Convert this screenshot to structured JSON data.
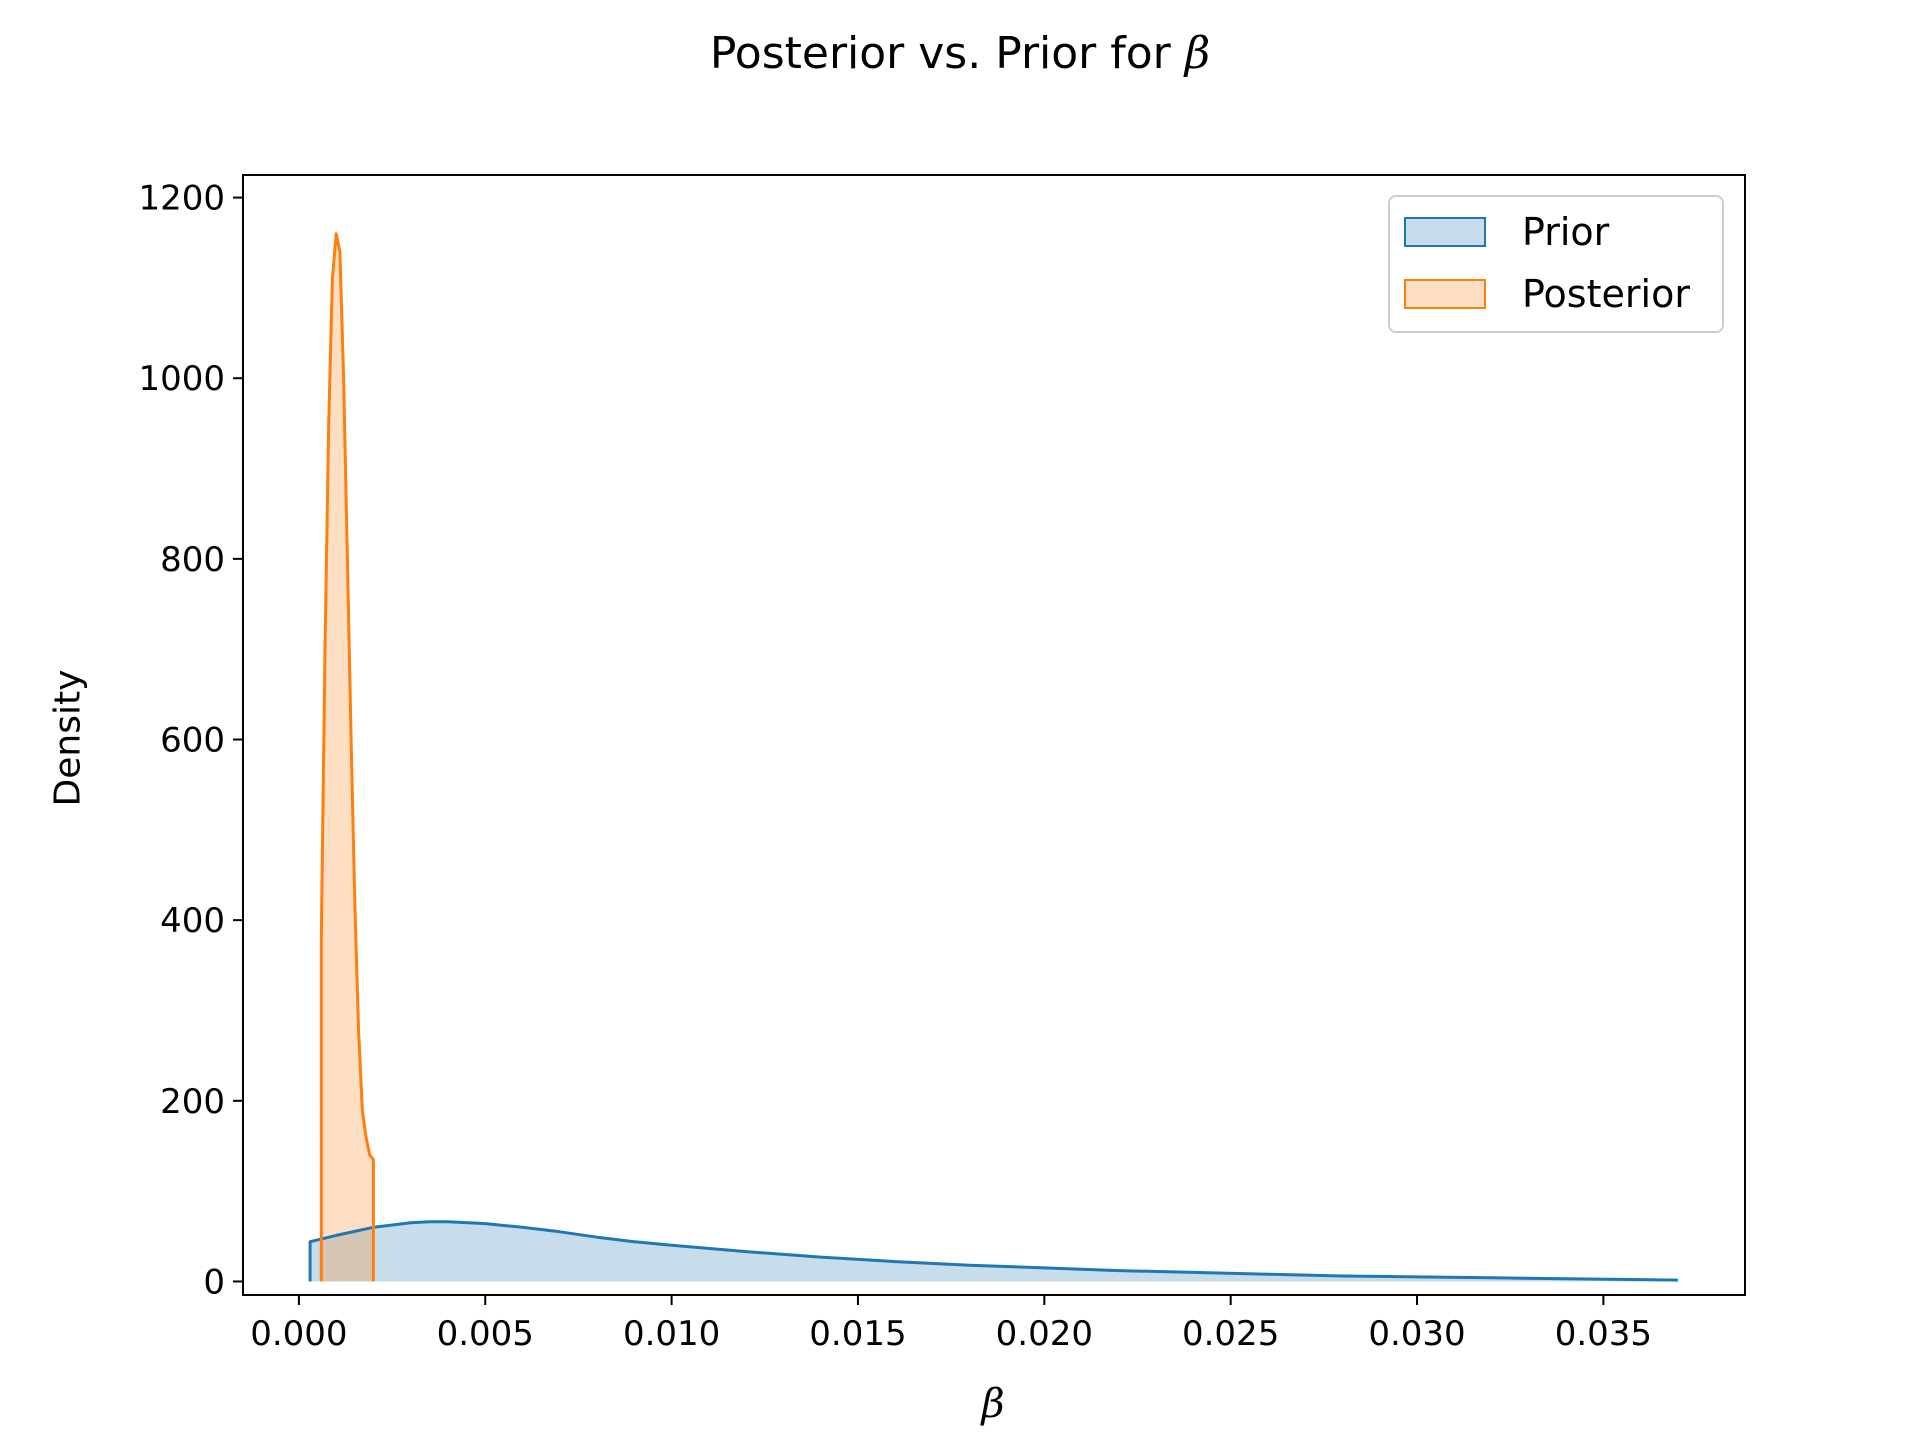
{
  "chart_data": {
    "type": "area",
    "title": "Posterior vs. Prior for ",
    "title_symbol": "β",
    "xlabel": "β",
    "ylabel": "Density",
    "xlim": [
      -0.0015,
      0.0388
    ],
    "ylim": [
      -15,
      1225
    ],
    "x_ticks": [
      0.0,
      0.005,
      0.01,
      0.015,
      0.02,
      0.025,
      0.03,
      0.035
    ],
    "x_tick_labels": [
      "0.000",
      "0.005",
      "0.010",
      "0.015",
      "0.020",
      "0.025",
      "0.030",
      "0.035"
    ],
    "y_ticks": [
      0,
      200,
      400,
      600,
      800,
      1000,
      1200
    ],
    "y_tick_labels": [
      "0",
      "200",
      "400",
      "600",
      "800",
      "1000",
      "1200"
    ],
    "legend_position": "top-right",
    "series": [
      {
        "name": "Prior",
        "color": "#1f77b4",
        "fill_opacity": 0.25,
        "x": [
          0.0003,
          0.001,
          0.002,
          0.003,
          0.0035,
          0.004,
          0.005,
          0.006,
          0.007,
          0.008,
          0.009,
          0.01,
          0.012,
          0.014,
          0.016,
          0.018,
          0.02,
          0.022,
          0.024,
          0.026,
          0.028,
          0.03,
          0.032,
          0.034,
          0.036,
          0.037
        ],
        "y": [
          44,
          51,
          60,
          65,
          66,
          66,
          64,
          60,
          55,
          49,
          44,
          40,
          33,
          27,
          22,
          18,
          15,
          12,
          10,
          8,
          6,
          5,
          4,
          3,
          2,
          1.5
        ]
      },
      {
        "name": "Posterior",
        "color": "#ff7f0e",
        "fill_opacity": 0.25,
        "x": [
          0.0006,
          0.0006,
          0.0007,
          0.0008,
          0.0009,
          0.001,
          0.0011,
          0.0012,
          0.0013,
          0.0014,
          0.0015,
          0.0016,
          0.0017,
          0.0018,
          0.0019,
          0.002,
          0.002
        ],
        "y": [
          0,
          380,
          700,
          950,
          1110,
          1160,
          1140,
          1000,
          800,
          600,
          420,
          280,
          190,
          160,
          140,
          135,
          0
        ]
      }
    ]
  }
}
